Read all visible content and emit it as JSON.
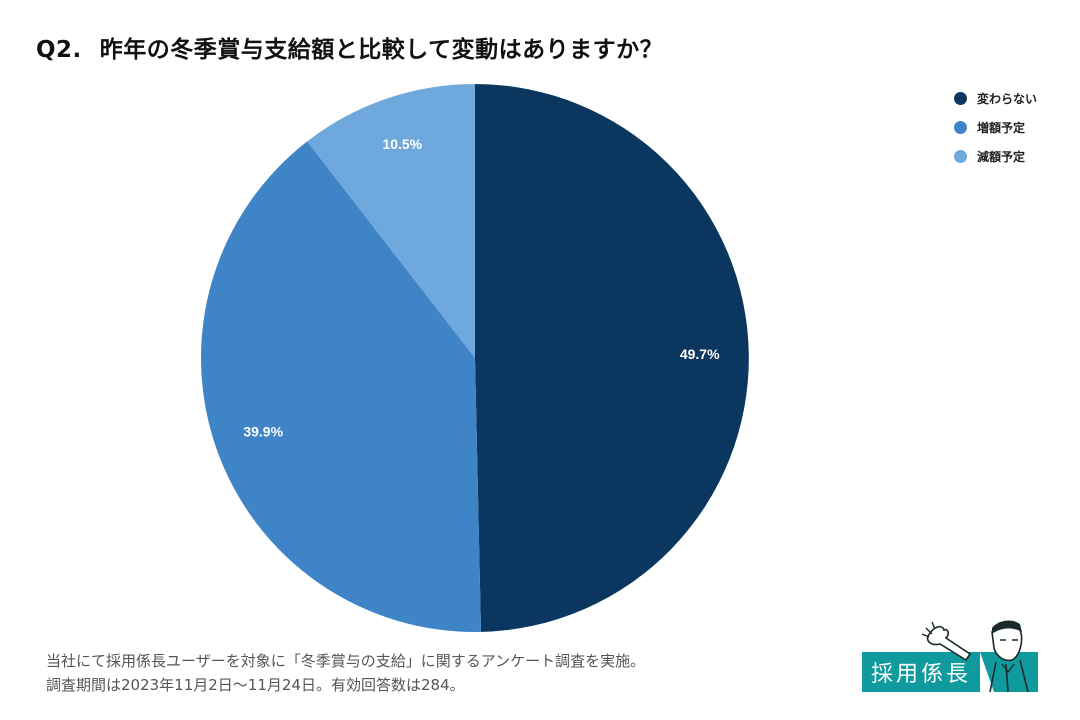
{
  "title": {
    "number": "Q2.",
    "text": "昨年の冬季賞与支給額と比較して変動はありますか？"
  },
  "chart_data": {
    "type": "pie",
    "title": "昨年の冬季賞与支給額と比較して変動はありますか？",
    "categories": [
      "変わらない",
      "増額予定",
      "減額予定"
    ],
    "values": [
      49.7,
      39.9,
      10.5
    ],
    "labels": [
      "49.7%",
      "39.9%",
      "10.5%"
    ],
    "colors": [
      "#0b3660",
      "#3e84c6",
      "#6fa8dc"
    ],
    "start": "12 o'clock, clockwise",
    "legend_position": "top-right"
  },
  "legend": [
    {
      "label": "変わらない",
      "color": "#0b3660"
    },
    {
      "label": "増額予定",
      "color": "#3e84c6"
    },
    {
      "label": "減額予定",
      "color": "#6fa8dc"
    }
  ],
  "footnote": {
    "line1": "当社にて採用係長ユーザーを対象に「冬季賞与の支給」に関するアンケート調査を実施。",
    "line2": "調査期間は2023年11月2日〜11月24日。有効回答数は284。"
  },
  "logo": {
    "text": "採用係長",
    "brand_color": "#0f9a9e"
  }
}
